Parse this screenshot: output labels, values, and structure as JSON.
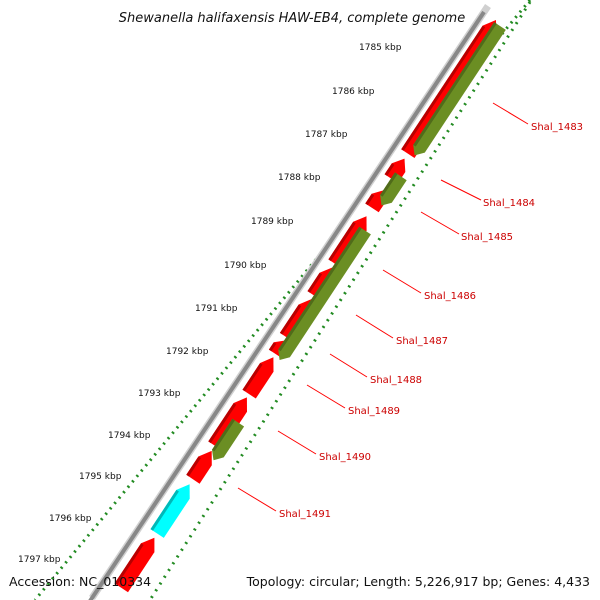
{
  "map": {
    "title": "Shewanella halifaxensis HAW-EB4, complete genome",
    "accession": "Accession: NC_010334",
    "summary": "Topology: circular; Length: 5,226,917 bp; Genes: 4,433"
  },
  "ticks": [
    "1785 kbp",
    "1786 kbp",
    "1787 kbp",
    "1788 kbp",
    "1789 kbp",
    "1790 kbp",
    "1791 kbp",
    "1792 kbp",
    "1793 kbp",
    "1794 kbp",
    "1795 kbp",
    "1796 kbp",
    "1797 kbp"
  ],
  "genes": [
    "Shal_1483",
    "Shal_1484",
    "Shal_1485",
    "Shal_1486",
    "Shal_1487",
    "Shal_1488",
    "Shal_1489",
    "Shal_1490",
    "Shal_1491"
  ],
  "colors": {
    "forward_strand": "#ff0000",
    "reverse_strand": "#6b8e23",
    "other_feature": "#00ffff",
    "backbone": "#888888",
    "tick": "#228b22",
    "label_line": "#ff0000",
    "label_text": "#cc0000"
  }
}
